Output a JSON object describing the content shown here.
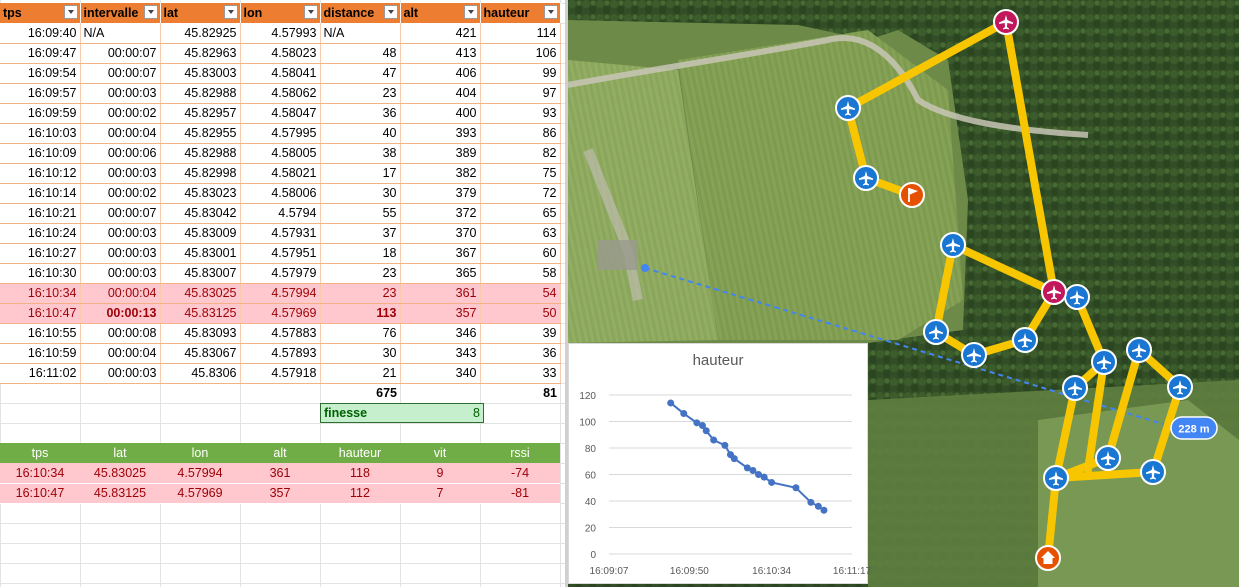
{
  "sheet": {
    "columns": [
      "tps",
      "intervalle",
      "lat",
      "lon",
      "distance",
      "alt",
      "hauteur"
    ],
    "rows": [
      {
        "tps": "16:09:40",
        "intervalle": "N/A",
        "lat": "45.82925",
        "lon": "4.57993",
        "distance": "N/A",
        "alt": "421",
        "hauteur": "114"
      },
      {
        "tps": "16:09:47",
        "intervalle": "00:00:07",
        "lat": "45.82963",
        "lon": "4.58023",
        "distance": "48",
        "alt": "413",
        "hauteur": "106"
      },
      {
        "tps": "16:09:54",
        "intervalle": "00:00:07",
        "lat": "45.83003",
        "lon": "4.58041",
        "distance": "47",
        "alt": "406",
        "hauteur": "99"
      },
      {
        "tps": "16:09:57",
        "intervalle": "00:00:03",
        "lat": "45.82988",
        "lon": "4.58062",
        "distance": "23",
        "alt": "404",
        "hauteur": "97"
      },
      {
        "tps": "16:09:59",
        "intervalle": "00:00:02",
        "lat": "45.82957",
        "lon": "4.58047",
        "distance": "36",
        "alt": "400",
        "hauteur": "93"
      },
      {
        "tps": "16:10:03",
        "intervalle": "00:00:04",
        "lat": "45.82955",
        "lon": "4.57995",
        "distance": "40",
        "alt": "393",
        "hauteur": "86"
      },
      {
        "tps": "16:10:09",
        "intervalle": "00:00:06",
        "lat": "45.82988",
        "lon": "4.58005",
        "distance": "38",
        "alt": "389",
        "hauteur": "82"
      },
      {
        "tps": "16:10:12",
        "intervalle": "00:00:03",
        "lat": "45.82998",
        "lon": "4.58021",
        "distance": "17",
        "alt": "382",
        "hauteur": "75"
      },
      {
        "tps": "16:10:14",
        "intervalle": "00:00:02",
        "lat": "45.83023",
        "lon": "4.58006",
        "distance": "30",
        "alt": "379",
        "hauteur": "72"
      },
      {
        "tps": "16:10:21",
        "intervalle": "00:00:07",
        "lat": "45.83042",
        "lon": "4.5794",
        "distance": "55",
        "alt": "372",
        "hauteur": "65"
      },
      {
        "tps": "16:10:24",
        "intervalle": "00:00:03",
        "lat": "45.83009",
        "lon": "4.57931",
        "distance": "37",
        "alt": "370",
        "hauteur": "63"
      },
      {
        "tps": "16:10:27",
        "intervalle": "00:00:03",
        "lat": "45.83001",
        "lon": "4.57951",
        "distance": "18",
        "alt": "367",
        "hauteur": "60"
      },
      {
        "tps": "16:10:30",
        "intervalle": "00:00:03",
        "lat": "45.83007",
        "lon": "4.57979",
        "distance": "23",
        "alt": "365",
        "hauteur": "58"
      },
      {
        "tps": "16:10:34",
        "intervalle": "00:00:04",
        "lat": "45.83025",
        "lon": "4.57994",
        "distance": "23",
        "alt": "361",
        "hauteur": "54",
        "highlight": true
      },
      {
        "tps": "16:10:47",
        "intervalle": "00:00:13",
        "lat": "45.83125",
        "lon": "4.57969",
        "distance": "113",
        "alt": "357",
        "hauteur": "50",
        "highlight": true,
        "bold": true
      },
      {
        "tps": "16:10:55",
        "intervalle": "00:00:08",
        "lat": "45.83093",
        "lon": "4.57883",
        "distance": "76",
        "alt": "346",
        "hauteur": "39"
      },
      {
        "tps": "16:10:59",
        "intervalle": "00:00:04",
        "lat": "45.83067",
        "lon": "4.57893",
        "distance": "30",
        "alt": "343",
        "hauteur": "36"
      },
      {
        "tps": "16:11:02",
        "intervalle": "00:00:03",
        "lat": "45.8306",
        "lon": "4.57918",
        "distance": "21",
        "alt": "340",
        "hauteur": "33"
      }
    ],
    "totals": {
      "distance": "675",
      "hauteur": "81"
    },
    "finesse": {
      "label": "finesse",
      "value": "8"
    }
  },
  "detail": {
    "columns": [
      "tps",
      "lat",
      "lon",
      "alt",
      "hauteur",
      "vit",
      "rssi"
    ],
    "rows": [
      [
        "16:10:34",
        "45.83025",
        "4.57994",
        "361",
        "118",
        "9",
        "-74"
      ],
      [
        "16:10:47",
        "45.83125",
        "4.57969",
        "357",
        "112",
        "7",
        "-81"
      ]
    ]
  },
  "map": {
    "distance_label": "228 m",
    "track_color": "#f7c600",
    "colors": {
      "plane_marker": "#1976d2",
      "pink_marker": "#c2185b",
      "orange_marker": "#e65100",
      "distance_line": "#4285f4"
    },
    "icons": [
      "plane-marker-icon",
      "flag-icon",
      "home-icon"
    ]
  },
  "chart_data": {
    "type": "line",
    "title": "hauteur",
    "xlabel": "",
    "ylabel": "",
    "ylim": [
      0,
      120
    ],
    "yticks": [
      0,
      20,
      40,
      60,
      80,
      100,
      120
    ],
    "xticks": [
      "16:09:07",
      "16:09:50",
      "16:10:34",
      "16:11:17"
    ],
    "x": [
      "16:09:40",
      "16:09:47",
      "16:09:54",
      "16:09:57",
      "16:09:59",
      "16:10:03",
      "16:10:09",
      "16:10:12",
      "16:10:14",
      "16:10:21",
      "16:10:24",
      "16:10:27",
      "16:10:30",
      "16:10:34",
      "16:10:47",
      "16:10:55",
      "16:10:59",
      "16:11:02"
    ],
    "values": [
      114,
      106,
      99,
      97,
      93,
      86,
      82,
      75,
      72,
      65,
      63,
      60,
      58,
      54,
      50,
      39,
      36,
      33
    ],
    "color": "#4472c4",
    "grid": true
  }
}
